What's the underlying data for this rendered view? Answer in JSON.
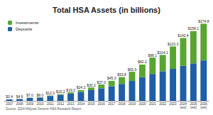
{
  "chart_data": {
    "type": "bar",
    "title": "Total HSA Assets (in billions)",
    "source": "Source: 2024 Midyear Devenir HSA Research Report",
    "categories": [
      "2007",
      "2008",
      "2009",
      "2010",
      "2011",
      "2012",
      "2013",
      "2014",
      "2015",
      "2016",
      "2017",
      "2018",
      "2019",
      "2020",
      "2021",
      "2022",
      "2023",
      "2024 (est)",
      "2025 (est)",
      "2026 (est)"
    ],
    "series": [
      {
        "name": "Deposits",
        "color": "#1f5fa8",
        "values": [
          3.2,
          4.2,
          6.5,
          7.4,
          11.0,
          13.5,
          16.3,
          20.0,
          24.2,
          28.4,
          33.0,
          38.3,
          45.0,
          53.4,
          60.9,
          67.1,
          72.4,
          79.2,
          84.9,
          91.5
        ]
      },
      {
        "name": "Investments",
        "color": "#5aa532",
        "values": [
          0.2,
          0.4,
          0.5,
          0.6,
          1.0,
          1.7,
          2.9,
          4.2,
          6.0,
          8.6,
          12.3,
          15.5,
          20.9,
          28.8,
          37.2,
          37.0,
          50.9,
          63.2,
          73.2,
          83.3
        ]
      }
    ],
    "total_labels": [
      "$3.4",
      "$4.6",
      "$7.0",
      "$8.0",
      "$12.0",
      "$15.2",
      "$19.2",
      "$24.2",
      "$30.2",
      "$37.0",
      "$45.3",
      "$53.8",
      "$65.9",
      "$82.2",
      "$98.1",
      "$104.1",
      "$123.3",
      "$142.4",
      "$158.1",
      "$174.8"
    ],
    "ylim": [
      0,
      190
    ],
    "stacked": true,
    "grid": false,
    "legend": "top-left",
    "tick_labels": "x"
  }
}
